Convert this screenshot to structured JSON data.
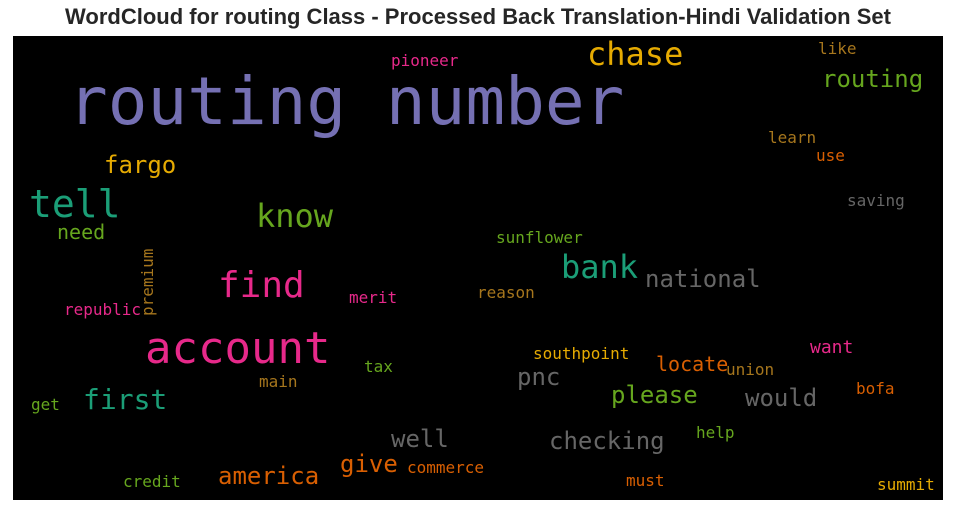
{
  "chart_data": {
    "type": "wordcloud",
    "title": "WordCloud for routing Class - Processed Back Translation-Hindi Validation Set",
    "background": "#000000",
    "words": [
      {
        "text": "routing number",
        "color": "#7570b3"
      },
      {
        "text": "account",
        "color": "#e7298a"
      },
      {
        "text": "chase",
        "color": "#e6ab02"
      },
      {
        "text": "tell",
        "color": "#1b9e77"
      },
      {
        "text": "know",
        "color": "#66a61e"
      },
      {
        "text": "find",
        "color": "#e7298a"
      },
      {
        "text": "bank",
        "color": "#1b9e77"
      },
      {
        "text": "routing",
        "color": "#66a61e"
      },
      {
        "text": "fargo",
        "color": "#e6ab02"
      },
      {
        "text": "national",
        "color": "#666666"
      },
      {
        "text": "first",
        "color": "#1b9e77"
      },
      {
        "text": "america",
        "color": "#d95f02"
      },
      {
        "text": "checking",
        "color": "#666666"
      },
      {
        "text": "please",
        "color": "#66a61e"
      },
      {
        "text": "would",
        "color": "#666666"
      },
      {
        "text": "well",
        "color": "#666666"
      },
      {
        "text": "give",
        "color": "#d95f02"
      },
      {
        "text": "pnc",
        "color": "#666666"
      },
      {
        "text": "locate",
        "color": "#d95f02"
      },
      {
        "text": "need",
        "color": "#66a61e"
      },
      {
        "text": "want",
        "color": "#e7298a"
      },
      {
        "text": "southpoint",
        "color": "#e6ab02"
      },
      {
        "text": "pioneer",
        "color": "#e7298a"
      },
      {
        "text": "like",
        "color": "#a6761d"
      },
      {
        "text": "learn",
        "color": "#a6761d"
      },
      {
        "text": "use",
        "color": "#d95f02"
      },
      {
        "text": "saving",
        "color": "#666666"
      },
      {
        "text": "sunflower",
        "color": "#66a61e"
      },
      {
        "text": "premium",
        "color": "#a6761d"
      },
      {
        "text": "republic",
        "color": "#e7298a"
      },
      {
        "text": "merit",
        "color": "#e7298a"
      },
      {
        "text": "reason",
        "color": "#a6761d"
      },
      {
        "text": "tax",
        "color": "#66a61e"
      },
      {
        "text": "union",
        "color": "#a6761d"
      },
      {
        "text": "main",
        "color": "#a6761d"
      },
      {
        "text": "bofa",
        "color": "#d95f02"
      },
      {
        "text": "get",
        "color": "#66a61e"
      },
      {
        "text": "help",
        "color": "#66a61e"
      },
      {
        "text": "commerce",
        "color": "#d95f02"
      },
      {
        "text": "credit",
        "color": "#66a61e"
      },
      {
        "text": "must",
        "color": "#d95f02"
      },
      {
        "text": "summit",
        "color": "#e6ab02"
      }
    ]
  }
}
